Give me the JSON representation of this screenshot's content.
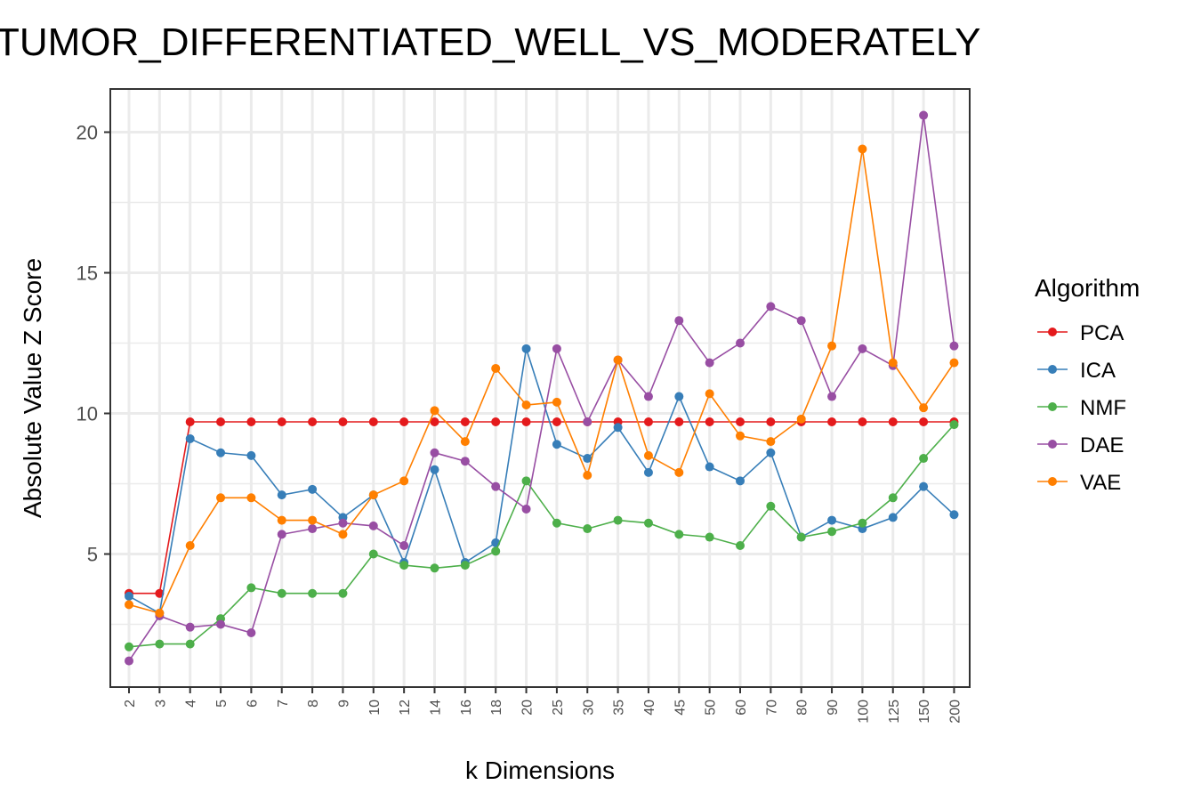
{
  "chart_data": {
    "type": "line",
    "title": "TUMOR_DIFFERENTIATED_WELL_VS_MODERATELY",
    "xlabel": "k Dimensions",
    "ylabel": "Absolute Value Z Score",
    "categories": [
      "2",
      "3",
      "4",
      "5",
      "6",
      "7",
      "8",
      "9",
      "10",
      "12",
      "14",
      "16",
      "18",
      "20",
      "25",
      "30",
      "35",
      "40",
      "45",
      "50",
      "60",
      "70",
      "80",
      "90",
      "100",
      "125",
      "150",
      "200"
    ],
    "yticks": [
      5,
      10,
      15,
      20
    ],
    "ylim": [
      0.8,
      21.5
    ],
    "grid": true,
    "legend": {
      "title": "Algorithm",
      "position": "right"
    },
    "series": [
      {
        "name": "PCA",
        "color": "#e41a1c",
        "values": [
          3.6,
          3.6,
          9.7,
          9.7,
          9.7,
          9.7,
          9.7,
          9.7,
          9.7,
          9.7,
          9.7,
          9.7,
          9.7,
          9.7,
          9.7,
          9.7,
          9.7,
          9.7,
          9.7,
          9.7,
          9.7,
          9.7,
          9.7,
          9.7,
          9.7,
          9.7,
          9.7,
          9.7
        ]
      },
      {
        "name": "ICA",
        "color": "#377eb8",
        "values": [
          3.5,
          2.9,
          9.1,
          8.6,
          8.5,
          7.1,
          7.3,
          6.3,
          7.1,
          4.7,
          8.0,
          4.7,
          5.4,
          12.3,
          8.9,
          8.4,
          9.5,
          7.9,
          10.6,
          8.1,
          7.6,
          8.6,
          5.6,
          6.2,
          5.9,
          6.3,
          7.4,
          6.4
        ]
      },
      {
        "name": "NMF",
        "color": "#4daf4a",
        "values": [
          1.7,
          1.8,
          1.8,
          2.7,
          3.8,
          3.6,
          3.6,
          3.6,
          5.0,
          4.6,
          4.5,
          4.6,
          5.1,
          7.6,
          6.1,
          5.9,
          6.2,
          6.1,
          5.7,
          5.6,
          5.3,
          6.7,
          5.6,
          5.8,
          6.1,
          7.0,
          8.4,
          9.6
        ]
      },
      {
        "name": "DAE",
        "color": "#984ea3",
        "values": [
          1.2,
          2.8,
          2.4,
          2.5,
          2.2,
          5.7,
          5.9,
          6.1,
          6.0,
          5.3,
          8.6,
          8.3,
          7.4,
          6.6,
          12.3,
          9.7,
          11.9,
          10.6,
          13.3,
          11.8,
          12.5,
          13.8,
          13.3,
          10.6,
          12.3,
          11.7,
          20.6,
          12.4
        ]
      },
      {
        "name": "VAE",
        "color": "#ff7f00",
        "values": [
          3.2,
          2.9,
          5.3,
          7.0,
          7.0,
          6.2,
          6.2,
          5.7,
          7.1,
          7.6,
          10.1,
          9.0,
          11.6,
          10.3,
          10.4,
          7.8,
          11.9,
          8.5,
          7.9,
          10.7,
          9.2,
          9.0,
          9.8,
          12.4,
          19.4,
          11.8,
          10.2,
          11.8
        ]
      }
    ]
  }
}
